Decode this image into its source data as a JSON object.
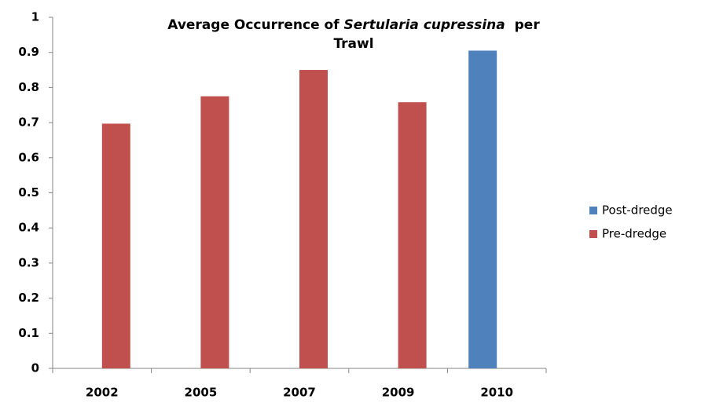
{
  "chart_data": {
    "type": "bar",
    "title": [
      "Average Occurrence of",
      "Sertularia cupressina",
      "per",
      "Trawl"
    ],
    "categories": [
      "2002",
      "2005",
      "2007",
      "2009",
      "2010"
    ],
    "series": [
      {
        "name": "Post-dredge",
        "color": "#4f81bd",
        "values": [
          null,
          null,
          null,
          null,
          0.905
        ]
      },
      {
        "name": "Pre-dredge",
        "color": "#c0504d",
        "values": [
          0.697,
          0.775,
          0.85,
          0.758,
          null
        ]
      }
    ],
    "ylim": [
      0,
      1
    ],
    "yticks": [
      0,
      0.1,
      0.2,
      0.3,
      0.4,
      0.5,
      0.6,
      0.7,
      0.8,
      0.9,
      1
    ],
    "grid": false,
    "legend": "right"
  }
}
